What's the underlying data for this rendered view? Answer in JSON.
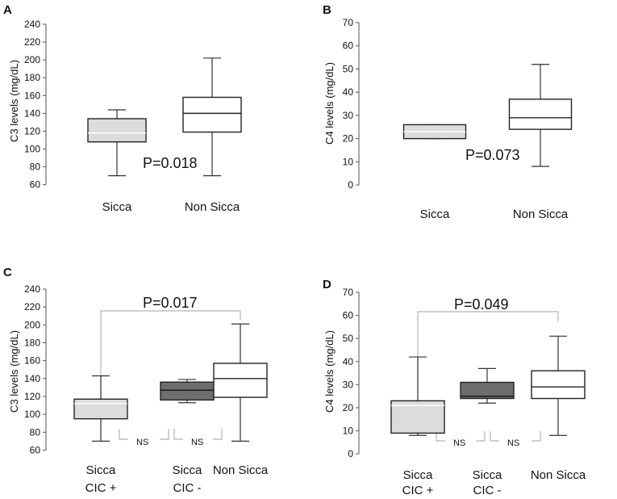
{
  "chart_data": [
    {
      "type": "box",
      "panel": "A",
      "ylabel": "C3 levels (mg/dL)",
      "yticks": [
        60,
        80,
        100,
        120,
        140,
        160,
        180,
        200,
        220,
        240
      ],
      "ylim": [
        57,
        240
      ],
      "annotation": "P=0.018",
      "series": [
        {
          "name": "Sicca",
          "label_lines": [
            "Sicca"
          ],
          "fill": "#dcdcdc",
          "min": 70,
          "q1": 108,
          "median": 118,
          "q3": 134,
          "max": 144
        },
        {
          "name": "Non Sicca",
          "label_lines": [
            "Non Sicca"
          ],
          "fill": "#ffffff",
          "min": 70,
          "q1": 119,
          "median": 140,
          "q3": 158,
          "max": 202
        }
      ]
    },
    {
      "type": "box",
      "panel": "B",
      "ylabel": "C4 levels (mg/dL)",
      "yticks": [
        0,
        10,
        20,
        30,
        40,
        50,
        60,
        70
      ],
      "ylim": [
        -1,
        70
      ],
      "annotation": "P=0.073",
      "series": [
        {
          "name": "Sicca",
          "label_lines": [
            "Sicca"
          ],
          "fill": "#dcdcdc",
          "min": 20,
          "q1": 20,
          "median": 23,
          "q3": 26,
          "max": 26
        },
        {
          "name": "Non Sicca",
          "label_lines": [
            "Non Sicca"
          ],
          "fill": "#ffffff",
          "min": 8,
          "q1": 24,
          "median": 29,
          "q3": 37,
          "max": 52
        }
      ]
    },
    {
      "type": "box",
      "panel": "C",
      "ylabel": "C3 levels (mg/dL)",
      "yticks": [
        60,
        80,
        100,
        120,
        140,
        160,
        180,
        200,
        220,
        240
      ],
      "ylim": [
        55,
        240
      ],
      "annotation": "P=0.017",
      "ns_labels": [
        "NS",
        "NS"
      ],
      "series": [
        {
          "name": "Sicca CIC +",
          "label_lines": [
            "Sicca",
            "CIC +"
          ],
          "fill": "#dcdcdc",
          "min": 70,
          "q1": 95,
          "median": 112,
          "q3": 117,
          "max": 143
        },
        {
          "name": "Sicca CIC -",
          "label_lines": [
            "Sicca",
            "CIC -"
          ],
          "fill": "#6e6e6e",
          "min": 113,
          "q1": 116,
          "median": 127,
          "q3": 136,
          "max": 139
        },
        {
          "name": "Non Sicca",
          "label_lines": [
            "Non Sicca"
          ],
          "fill": "#ffffff",
          "min": 70,
          "q1": 119,
          "median": 140,
          "q3": 157,
          "max": 201
        }
      ]
    },
    {
      "type": "box",
      "panel": "D",
      "ylabel": "C4 levels (mg/dL)",
      "yticks": [
        0,
        10,
        20,
        30,
        40,
        50,
        60,
        70
      ],
      "ylim": [
        -1,
        70
      ],
      "annotation": "P=0.049",
      "ns_labels": [
        "NS",
        "NS"
      ],
      "series": [
        {
          "name": "Sicca CIC +",
          "label_lines": [
            "Sicca",
            "CIC +"
          ],
          "fill": "#dcdcdc",
          "min": 8,
          "q1": 9,
          "median": 21,
          "q3": 23,
          "max": 42
        },
        {
          "name": "Sicca CIC -",
          "label_lines": [
            "Sicca",
            "CIC -"
          ],
          "fill": "#6e6e6e",
          "min": 22,
          "q1": 24,
          "median": 25,
          "q3": 31,
          "max": 37
        },
        {
          "name": "Non Sicca",
          "label_lines": [
            "Non Sicca"
          ],
          "fill": "#ffffff",
          "min": 8,
          "q1": 24,
          "median": 29,
          "q3": 36,
          "max": 51
        }
      ]
    }
  ]
}
